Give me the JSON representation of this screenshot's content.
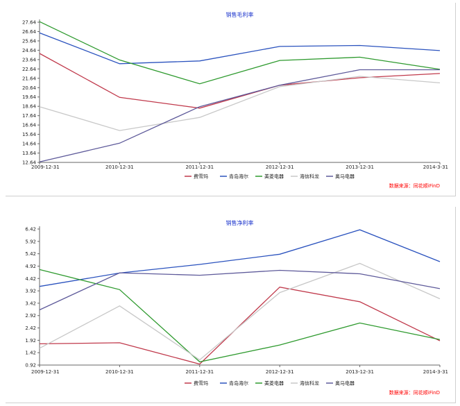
{
  "chart_data": [
    {
      "type": "line",
      "title": "销售毛利率",
      "x": [
        "2009-12-31",
        "2010-12-31",
        "2011-12-31",
        "2012-12-31",
        "2013-12-31",
        "2014-3-31"
      ],
      "y_ticks": [
        "27.64",
        "26.64",
        "25.64",
        "24.64",
        "23.64",
        "22.64",
        "21.64",
        "20.64",
        "19.64",
        "18.64",
        "17.64",
        "16.64",
        "15.64",
        "14.64",
        "13.64",
        "12.64"
      ],
      "ylim": [
        12.64,
        27.64
      ],
      "series": [
        {
          "name": "费雪玛",
          "color": "#c0394b",
          "values": [
            24.3,
            19.6,
            18.45,
            20.9,
            21.7,
            22.15
          ]
        },
        {
          "name": "青岛海尔",
          "color": "#2a52be",
          "values": [
            26.5,
            23.2,
            23.5,
            25.05,
            25.15,
            24.6
          ]
        },
        {
          "name": "美菱电器",
          "color": "#2e9a2e",
          "values": [
            27.7,
            23.6,
            21.05,
            23.55,
            23.9,
            22.6
          ]
        },
        {
          "name": "海信科龙",
          "color": "#c8c8c8",
          "values": [
            18.6,
            16.05,
            17.45,
            20.75,
            21.85,
            21.15
          ]
        },
        {
          "name": "奥马电器",
          "color": "#5e5a9a",
          "values": [
            12.7,
            14.7,
            18.6,
            20.9,
            22.55,
            22.55
          ]
        }
      ],
      "grid": false,
      "legend": "bottom",
      "source_note": "数据来源：同花顺iFinD"
    },
    {
      "type": "line",
      "title": "销售净利率",
      "x": [
        "2009-12-31",
        "2010-12-31",
        "2011-12-31",
        "2012-12-31",
        "2013-12-31",
        "2014-3-31"
      ],
      "y_ticks": [
        "6.42",
        "5.92",
        "5.42",
        "4.92",
        "4.42",
        "3.92",
        "3.42",
        "2.92",
        "2.42",
        "1.92",
        "1.42",
        "0.92"
      ],
      "ylim": [
        0.92,
        6.42
      ],
      "series": [
        {
          "name": "费雪玛",
          "color": "#c0394b",
          "values": [
            1.78,
            1.82,
            0.96,
            4.07,
            3.48,
            1.9
          ]
        },
        {
          "name": "青岛海尔",
          "color": "#2a52be",
          "values": [
            4.1,
            4.64,
            4.99,
            5.4,
            6.39,
            5.1
          ]
        },
        {
          "name": "美菱电器",
          "color": "#2e9a2e",
          "values": [
            4.78,
            3.97,
            1.05,
            1.73,
            2.62,
            1.95
          ]
        },
        {
          "name": "海信科龙",
          "color": "#c8c8c8",
          "values": [
            1.6,
            3.31,
            1.13,
            3.85,
            5.03,
            3.6
          ]
        },
        {
          "name": "奥马电器",
          "color": "#5e5a9a",
          "values": [
            3.15,
            4.65,
            4.55,
            4.75,
            4.61,
            4.01
          ]
        }
      ],
      "grid": false,
      "legend": "bottom",
      "source_note": "数据来源：同花顺iFinD"
    }
  ]
}
